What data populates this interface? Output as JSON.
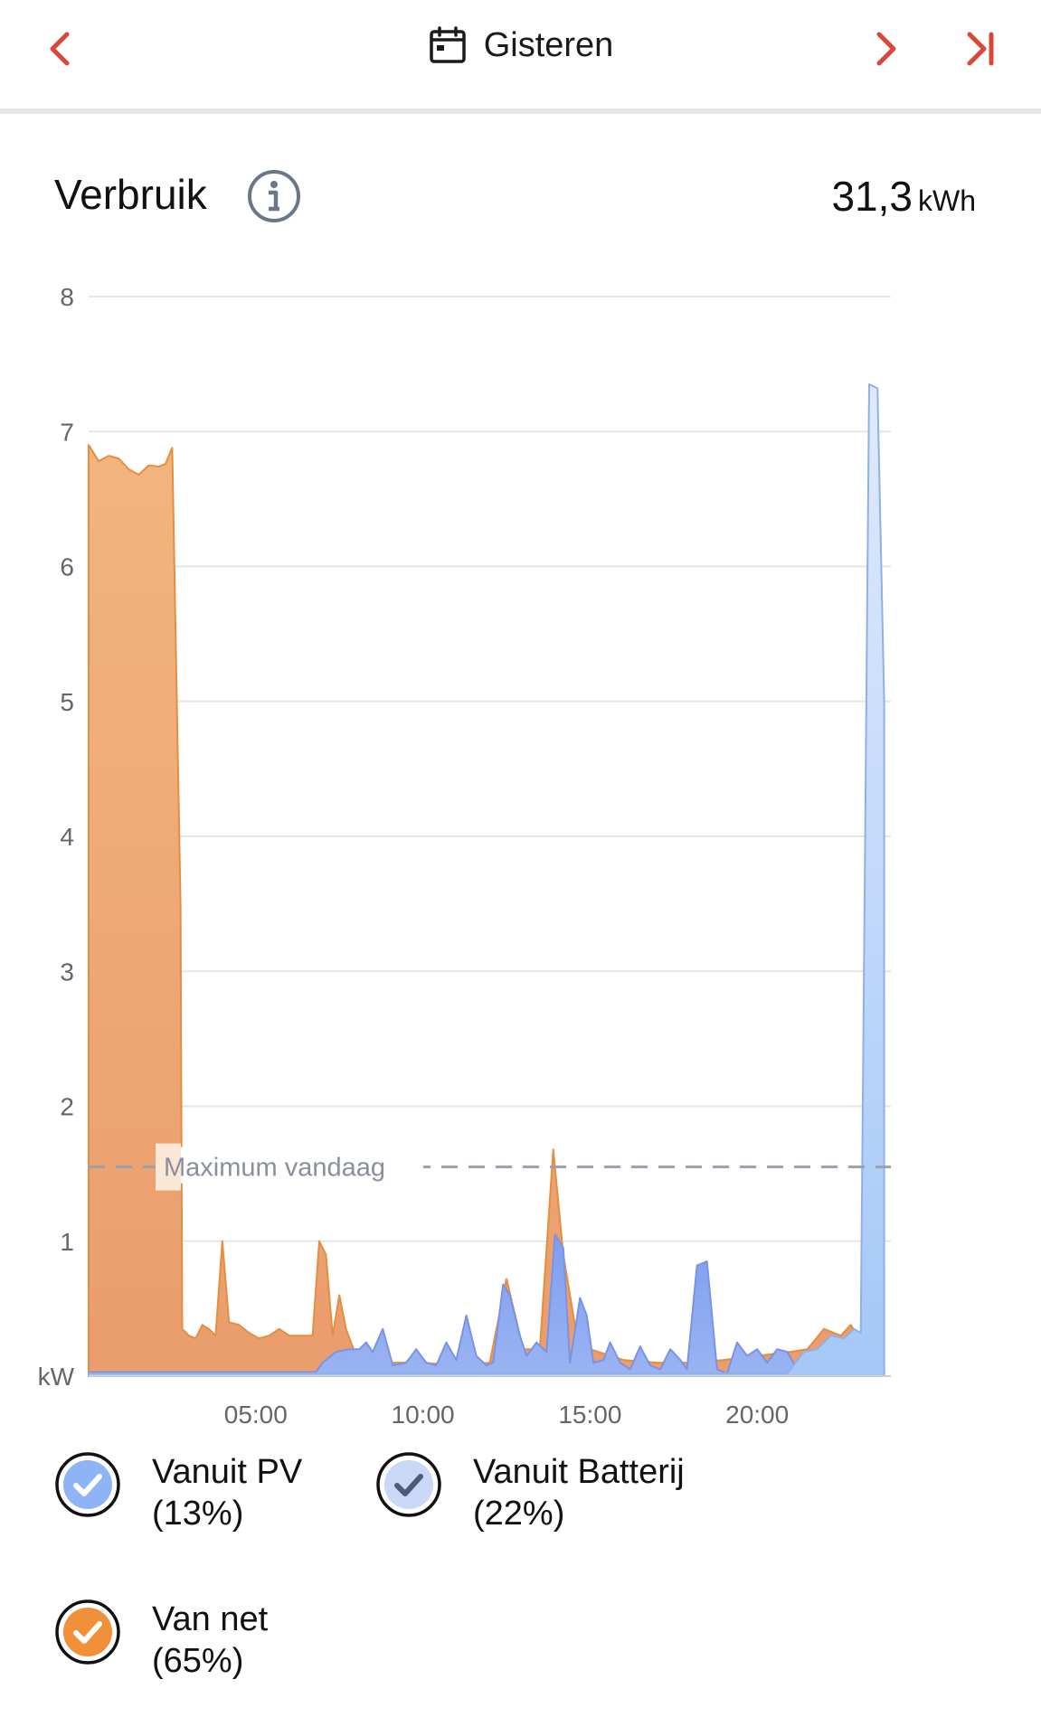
{
  "header": {
    "date_label": "Gisteren"
  },
  "section": {
    "title": "Verbruik",
    "total_value": "31,3",
    "total_unit": "kWh"
  },
  "legend": [
    {
      "label": "Vanuit PV",
      "pct": "(13%)",
      "color": "#8fb4f5"
    },
    {
      "label": "Vanuit Batterij",
      "pct": "(22%)",
      "color": "#c9d8f7"
    },
    {
      "label": "Van net",
      "pct": "(65%)",
      "color": "#f0913a"
    }
  ],
  "colors": {
    "accent_red": "#d9463a",
    "grid_net": "#ed9a57",
    "pv": "#8da8f0",
    "battery": "#a9cbf8",
    "icon_gray": "#6b7689"
  },
  "chart_data": {
    "type": "area",
    "y_unit": "kW",
    "ylim": [
      0,
      8
    ],
    "y_ticks": [
      0,
      1,
      2,
      3,
      4,
      5,
      6,
      7,
      8
    ],
    "x_range_hours": [
      0,
      24
    ],
    "x_tick_labels": [
      "05:00",
      "10:00",
      "15:00",
      "20:00"
    ],
    "x_tick_hours": [
      5,
      10,
      15,
      20
    ],
    "reference_line": {
      "label": "Maximum vandaag",
      "value": 1.55
    },
    "series": [
      {
        "name": "Van net",
        "points": [
          [
            0,
            6.9
          ],
          [
            0.3,
            6.78
          ],
          [
            0.6,
            6.82
          ],
          [
            0.9,
            6.8
          ],
          [
            1.2,
            6.72
          ],
          [
            1.5,
            6.68
          ],
          [
            1.8,
            6.75
          ],
          [
            2.1,
            6.74
          ],
          [
            2.3,
            6.76
          ],
          [
            2.5,
            6.88
          ],
          [
            2.75,
            3.5
          ],
          [
            2.8,
            0.35
          ],
          [
            3.0,
            0.3
          ],
          [
            3.2,
            0.28
          ],
          [
            3.4,
            0.38
          ],
          [
            3.6,
            0.35
          ],
          [
            3.8,
            0.3
          ],
          [
            4.0,
            1.0
          ],
          [
            4.2,
            0.4
          ],
          [
            4.5,
            0.38
          ],
          [
            4.8,
            0.32
          ],
          [
            5.1,
            0.28
          ],
          [
            5.4,
            0.3
          ],
          [
            5.7,
            0.35
          ],
          [
            6.0,
            0.3
          ],
          [
            6.3,
            0.3
          ],
          [
            6.7,
            0.3
          ],
          [
            6.9,
            1.0
          ],
          [
            7.1,
            0.9
          ],
          [
            7.3,
            0.3
          ],
          [
            7.5,
            0.6
          ],
          [
            7.7,
            0.35
          ],
          [
            8.0,
            0.15
          ],
          [
            8.5,
            0.12
          ],
          [
            9.0,
            0.1
          ],
          [
            9.5,
            0.1
          ],
          [
            10.0,
            0.1
          ],
          [
            11.0,
            0.08
          ],
          [
            12.0,
            0.1
          ],
          [
            12.5,
            0.72
          ],
          [
            13.0,
            0.2
          ],
          [
            13.5,
            0.2
          ],
          [
            13.9,
            1.68
          ],
          [
            14.2,
            0.9
          ],
          [
            14.6,
            0.3
          ],
          [
            15.0,
            0.2
          ],
          [
            16.0,
            0.12
          ],
          [
            17.0,
            0.1
          ],
          [
            18.0,
            0.1
          ],
          [
            19.0,
            0.12
          ],
          [
            20.0,
            0.15
          ],
          [
            21.0,
            0.18
          ],
          [
            21.5,
            0.2
          ],
          [
            22.0,
            0.35
          ],
          [
            22.5,
            0.3
          ],
          [
            22.8,
            0.38
          ],
          [
            23.0,
            0.3
          ],
          [
            23.2,
            0.05
          ],
          [
            23.8,
            0.05
          ]
        ]
      },
      {
        "name": "Vanuit PV",
        "points": [
          [
            0,
            0.03
          ],
          [
            3,
            0.03
          ],
          [
            6.8,
            0.03
          ],
          [
            7.0,
            0.1
          ],
          [
            7.4,
            0.18
          ],
          [
            7.8,
            0.2
          ],
          [
            8.1,
            0.2
          ],
          [
            8.3,
            0.25
          ],
          [
            8.5,
            0.18
          ],
          [
            8.8,
            0.35
          ],
          [
            9.1,
            0.08
          ],
          [
            9.5,
            0.1
          ],
          [
            9.8,
            0.2
          ],
          [
            10.1,
            0.1
          ],
          [
            10.4,
            0.08
          ],
          [
            10.7,
            0.25
          ],
          [
            11.0,
            0.12
          ],
          [
            11.3,
            0.45
          ],
          [
            11.6,
            0.15
          ],
          [
            11.9,
            0.08
          ],
          [
            12.1,
            0.1
          ],
          [
            12.4,
            0.68
          ],
          [
            12.6,
            0.6
          ],
          [
            12.9,
            0.3
          ],
          [
            13.1,
            0.15
          ],
          [
            13.4,
            0.25
          ],
          [
            13.7,
            0.18
          ],
          [
            13.95,
            1.05
          ],
          [
            14.2,
            0.95
          ],
          [
            14.4,
            0.1
          ],
          [
            14.7,
            0.58
          ],
          [
            14.9,
            0.45
          ],
          [
            15.1,
            0.1
          ],
          [
            15.4,
            0.12
          ],
          [
            15.6,
            0.25
          ],
          [
            15.9,
            0.1
          ],
          [
            16.2,
            0.05
          ],
          [
            16.5,
            0.22
          ],
          [
            16.8,
            0.08
          ],
          [
            17.1,
            0.05
          ],
          [
            17.4,
            0.2
          ],
          [
            17.7,
            0.12
          ],
          [
            17.9,
            0.05
          ],
          [
            18.2,
            0.82
          ],
          [
            18.5,
            0.85
          ],
          [
            18.8,
            0.05
          ],
          [
            19.1,
            0.02
          ],
          [
            19.4,
            0.25
          ],
          [
            19.7,
            0.15
          ],
          [
            20.0,
            0.2
          ],
          [
            20.3,
            0.1
          ],
          [
            20.6,
            0.2
          ],
          [
            20.9,
            0.18
          ],
          [
            21.2,
            0.05
          ],
          [
            21.5,
            0.18
          ],
          [
            21.8,
            0.05
          ],
          [
            23.8,
            0.05
          ]
        ]
      },
      {
        "name": "Vanuit Batterij",
        "points": [
          [
            0,
            0.02
          ],
          [
            20.9,
            0.02
          ],
          [
            21.4,
            0.18
          ],
          [
            21.8,
            0.2
          ],
          [
            22.2,
            0.3
          ],
          [
            22.6,
            0.28
          ],
          [
            22.9,
            0.35
          ],
          [
            23.1,
            0.32
          ],
          [
            23.35,
            7.35
          ],
          [
            23.6,
            7.32
          ],
          [
            23.8,
            5.0
          ]
        ]
      }
    ]
  }
}
